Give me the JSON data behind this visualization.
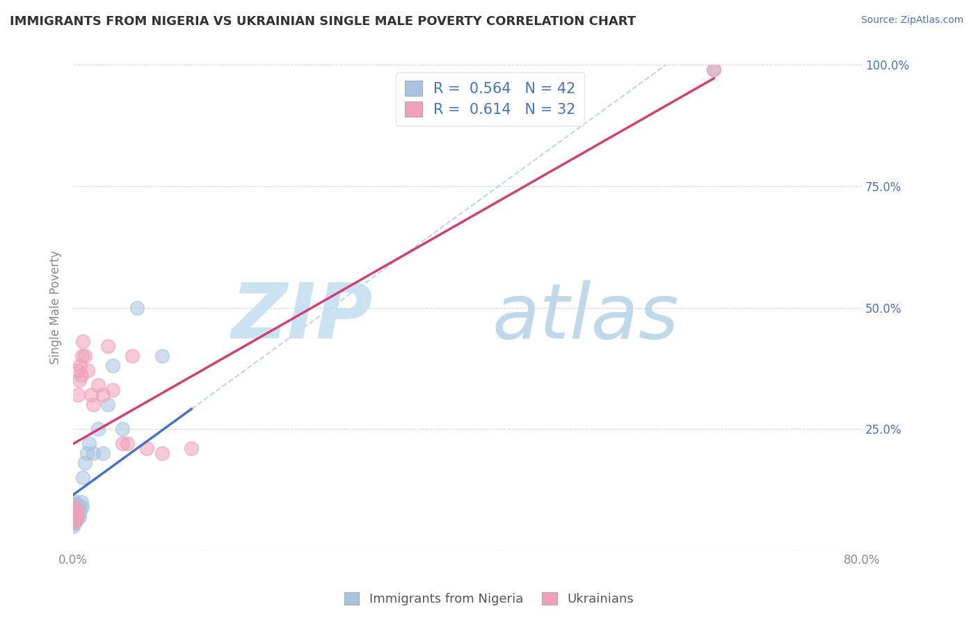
{
  "title": "IMMIGRANTS FROM NIGERIA VS UKRAINIAN SINGLE MALE POVERTY CORRELATION CHART",
  "source": "Source: ZipAtlas.com",
  "ylabel": "Single Male Poverty",
  "xlim": [
    0.0,
    0.8
  ],
  "ylim": [
    0.0,
    1.0
  ],
  "xtick_positions": [
    0.0,
    0.2,
    0.4,
    0.6,
    0.8
  ],
  "xtick_labels": [
    "0.0%",
    "",
    "",
    "",
    "80.0%"
  ],
  "ytick_positions": [
    0.0,
    0.25,
    0.5,
    0.75,
    1.0
  ],
  "ytick_labels": [
    "",
    "25.0%",
    "50.0%",
    "75.0%",
    "100.0%"
  ],
  "nigeria_R": 0.564,
  "nigeria_N": 42,
  "ukraine_R": 0.614,
  "ukraine_N": 32,
  "nigeria_color": "#a8c4e0",
  "ukraine_color": "#f0a0b8",
  "nigeria_line_color": "#4472c4",
  "ukraine_line_color": "#d04070",
  "nigeria_dash_color": "#b0c8e8",
  "legend_label_nigeria": "Immigrants from Nigeria",
  "legend_label_ukraine": "Ukrainians",
  "nigeria_x": [
    0.0,
    0.0,
    0.0,
    0.0,
    0.0,
    0.001,
    0.001,
    0.001,
    0.001,
    0.001,
    0.002,
    0.002,
    0.002,
    0.002,
    0.002,
    0.003,
    0.003,
    0.003,
    0.003,
    0.004,
    0.004,
    0.004,
    0.005,
    0.005,
    0.006,
    0.006,
    0.007,
    0.008,
    0.009,
    0.01,
    0.012,
    0.014,
    0.016,
    0.02,
    0.025,
    0.03,
    0.035,
    0.04,
    0.05,
    0.065,
    0.09,
    0.65
  ],
  "nigeria_y": [
    0.05,
    0.06,
    0.07,
    0.08,
    0.09,
    0.055,
    0.065,
    0.075,
    0.085,
    0.095,
    0.06,
    0.07,
    0.08,
    0.09,
    0.1,
    0.065,
    0.075,
    0.085,
    0.095,
    0.07,
    0.08,
    0.09,
    0.065,
    0.085,
    0.07,
    0.09,
    0.08,
    0.1,
    0.09,
    0.15,
    0.18,
    0.2,
    0.22,
    0.2,
    0.25,
    0.2,
    0.3,
    0.38,
    0.25,
    0.5,
    0.4,
    0.99
  ],
  "ukraine_x": [
    0.0,
    0.0,
    0.0,
    0.001,
    0.001,
    0.002,
    0.002,
    0.003,
    0.003,
    0.004,
    0.005,
    0.005,
    0.006,
    0.007,
    0.008,
    0.009,
    0.01,
    0.012,
    0.015,
    0.018,
    0.02,
    0.025,
    0.03,
    0.035,
    0.04,
    0.05,
    0.055,
    0.06,
    0.075,
    0.09,
    0.12,
    0.65
  ],
  "ukraine_y": [
    0.06,
    0.075,
    0.09,
    0.065,
    0.085,
    0.06,
    0.08,
    0.065,
    0.085,
    0.07,
    0.32,
    0.37,
    0.35,
    0.38,
    0.36,
    0.4,
    0.43,
    0.4,
    0.37,
    0.32,
    0.3,
    0.34,
    0.32,
    0.42,
    0.33,
    0.22,
    0.22,
    0.4,
    0.21,
    0.2,
    0.21,
    0.99
  ],
  "background_color": "#ffffff",
  "grid_color": "#cccccc",
  "title_color": "#333333",
  "axis_label_color": "#888888",
  "r_n_color": "#4472c4"
}
